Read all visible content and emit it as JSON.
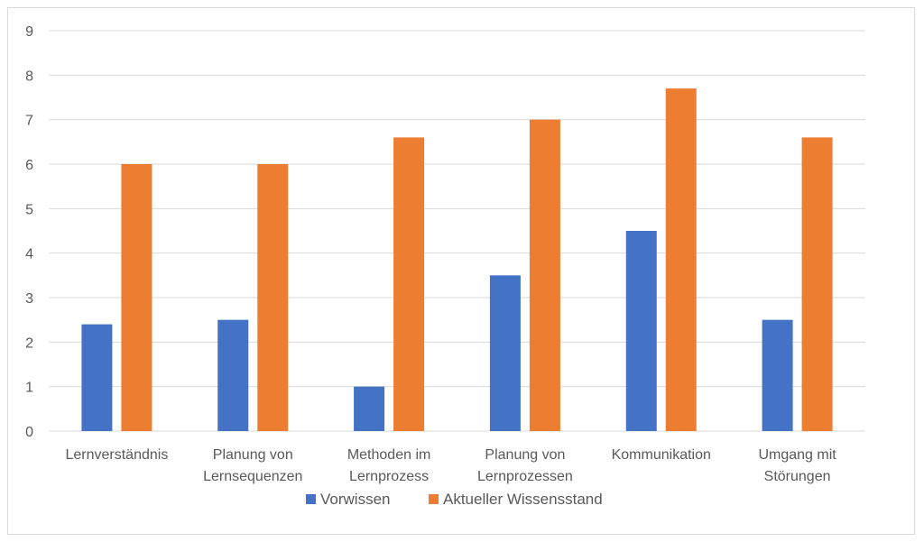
{
  "chart_data": {
    "type": "bar",
    "title": "",
    "xlabel": "",
    "ylabel": "",
    "ylim": [
      0,
      9
    ],
    "yticks": [
      0,
      1,
      2,
      3,
      4,
      5,
      6,
      7,
      8,
      9
    ],
    "grid": true,
    "legend_position": "bottom",
    "categories": [
      [
        "Lernverständnis"
      ],
      [
        "Planung von",
        "Lernsequenzen"
      ],
      [
        "Methoden im",
        "Lernprozess"
      ],
      [
        "Planung von",
        "Lernprozessen"
      ],
      [
        "Kommunikation"
      ],
      [
        "Umgang mit",
        "Störungen"
      ]
    ],
    "series": [
      {
        "name": "Vorwissen",
        "color": "#4472c4",
        "values": [
          2.4,
          2.5,
          1,
          3.5,
          4.5,
          2.5
        ]
      },
      {
        "name": "Aktueller Wissensstand",
        "color": "#ed7d31",
        "values": [
          6,
          6,
          6.6,
          7,
          7.7,
          6.6
        ]
      }
    ],
    "colors": {
      "grid": "#d9d9d9",
      "text": "#595959",
      "border": "#d9d9d9"
    }
  }
}
